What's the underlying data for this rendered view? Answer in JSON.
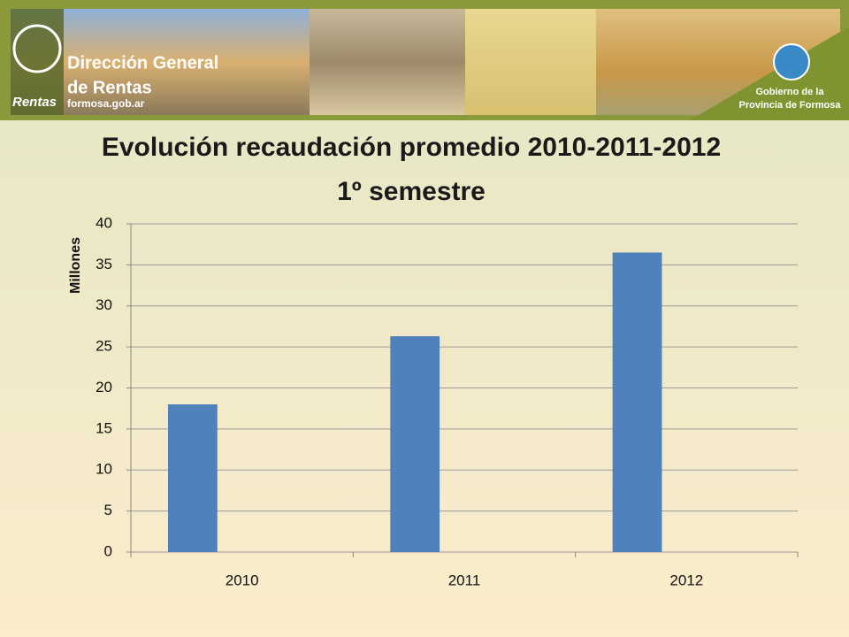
{
  "header": {
    "logo_text": "Rentas",
    "line1": "Dirección General",
    "line2": "de Rentas",
    "site": "formosa.gob.ar",
    "gov1": "Gobierno de la",
    "gov2": "Provincia de Formosa"
  },
  "chart_data": {
    "type": "bar",
    "title": "Evolución recaudación promedio 2010-2011-2012",
    "subtitle": "1º semestre",
    "y_label": "Millones",
    "categories": [
      "2010",
      "2011",
      "2012"
    ],
    "values": [
      18,
      26.3,
      36.5
    ],
    "color": "#4f81bd",
    "ylim": [
      0,
      40
    ],
    "yticks": [
      0,
      5,
      10,
      15,
      20,
      25,
      30,
      35,
      40
    ],
    "grid": true
  }
}
